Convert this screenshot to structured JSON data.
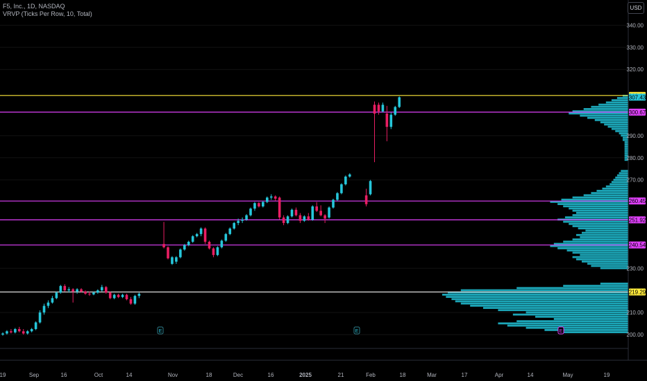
{
  "header": {
    "symbol_line": "F5, Inc., 1D, NASDAQ",
    "indicator_line": "VRVP (Ticks Per Row, 10, Total)",
    "currency": "USD"
  },
  "chart_data": {
    "type": "candlestick",
    "symbol": "FFIV",
    "interval": "1D",
    "ylim": [
      200,
      345
    ],
    "y_ticks": [
      {
        "label": "340.00",
        "value": 340
      },
      {
        "label": "330.00",
        "value": 330
      },
      {
        "label": "320.00",
        "value": 320
      },
      {
        "label": "290.00",
        "value": 290
      },
      {
        "label": "280.00",
        "value": 280
      },
      {
        "label": "270.00",
        "value": 270
      },
      {
        "label": "230.00",
        "value": 230
      },
      {
        "label": "210.00",
        "value": 210
      },
      {
        "label": "200.00",
        "value": 200
      }
    ],
    "x_ticks": [
      "19",
      "Sep",
      "16",
      "Oct",
      "14",
      "Nov",
      "18",
      "Dec",
      "16",
      "2025",
      "21",
      "Feb",
      "18",
      "Mar",
      "17",
      "Apr",
      "14",
      "May",
      "19"
    ],
    "colors": {
      "up": "#26c6da",
      "down": "#e91e63",
      "grid": "#131313",
      "level_magenta": "#e040fb",
      "level_yellow": "#ffeb3b",
      "level_white": "#e0e0e0",
      "profile": "#1fb8cc"
    },
    "horizontal_levels": [
      {
        "label": "308.21",
        "value": 308.21,
        "color": "#ffeb3b",
        "label_bg": "#ffeb3b",
        "label_fg": "#000000"
      },
      {
        "label": "307.43",
        "value": 307.43,
        "color": "#26c6da",
        "label_bg": "#26c6da",
        "label_fg": "#000000",
        "no_line": true
      },
      {
        "label": "300.67",
        "value": 300.67,
        "color": "#e040fb",
        "label_bg": "#e040fb",
        "label_fg": "#000000"
      },
      {
        "label": "260.45",
        "value": 260.45,
        "color": "#e040fb",
        "label_bg": "#e040fb",
        "label_fg": "#000000"
      },
      {
        "label": "251.92",
        "value": 251.92,
        "color": "#e040fb",
        "label_bg": "#e040fb",
        "label_fg": "#000000"
      },
      {
        "label": "240.54",
        "value": 240.54,
        "color": "#e040fb",
        "label_bg": "#e040fb",
        "label_fg": "#000000"
      },
      {
        "label": "219.29",
        "value": 219.29,
        "color": "#e0e0e0",
        "label_bg": "#ffeb3b",
        "label_fg": "#000000"
      }
    ],
    "earnings_markers": [
      {
        "label": "E",
        "near_tick": "Oct/Nov"
      },
      {
        "label": "E",
        "near_tick": "Jan"
      },
      {
        "label": "E",
        "near_tick": "May",
        "highlight": true
      }
    ],
    "candles": [
      {
        "o": 200,
        "h": 201,
        "l": 199.5,
        "c": 200.5
      },
      {
        "o": 200.5,
        "h": 202,
        "l": 200,
        "c": 201.5
      },
      {
        "o": 201.5,
        "h": 202.5,
        "l": 200.5,
        "c": 201
      },
      {
        "o": 201,
        "h": 203,
        "l": 200.5,
        "c": 202.5
      },
      {
        "o": 202.5,
        "h": 203.5,
        "l": 201,
        "c": 201.5
      },
      {
        "o": 201.5,
        "h": 202.5,
        "l": 200,
        "c": 200.5
      },
      {
        "o": 200.5,
        "h": 202,
        "l": 200,
        "c": 201.5
      },
      {
        "o": 201.5,
        "h": 203,
        "l": 201,
        "c": 202.5
      },
      {
        "o": 202.5,
        "h": 206,
        "l": 202,
        "c": 205.5
      },
      {
        "o": 205.5,
        "h": 211,
        "l": 205,
        "c": 210
      },
      {
        "o": 210,
        "h": 214,
        "l": 209,
        "c": 213
      },
      {
        "o": 213,
        "h": 215.5,
        "l": 212,
        "c": 214.5
      },
      {
        "o": 214.5,
        "h": 217.5,
        "l": 214,
        "c": 216.5
      },
      {
        "o": 216.5,
        "h": 219.5,
        "l": 216,
        "c": 219
      },
      {
        "o": 219,
        "h": 222.5,
        "l": 218.5,
        "c": 222
      },
      {
        "o": 222,
        "h": 222.8,
        "l": 219.5,
        "c": 220
      },
      {
        "o": 220,
        "h": 221.5,
        "l": 219,
        "c": 220.5
      },
      {
        "o": 220.5,
        "h": 221,
        "l": 214.5,
        "c": 219.5
      },
      {
        "o": 219.5,
        "h": 221,
        "l": 218.5,
        "c": 220.5
      },
      {
        "o": 220.5,
        "h": 221,
        "l": 219,
        "c": 219.5
      },
      {
        "o": 219.5,
        "h": 220,
        "l": 218,
        "c": 218.5
      },
      {
        "o": 218.5,
        "h": 219.5,
        "l": 217.5,
        "c": 218.2
      },
      {
        "o": 218.2,
        "h": 219.5,
        "l": 217.8,
        "c": 219
      },
      {
        "o": 219,
        "h": 220.5,
        "l": 218.5,
        "c": 220
      },
      {
        "o": 220,
        "h": 222.5,
        "l": 219.5,
        "c": 221.5
      },
      {
        "o": 221.5,
        "h": 222,
        "l": 218.5,
        "c": 219
      },
      {
        "o": 219,
        "h": 219.5,
        "l": 216,
        "c": 216.5
      },
      {
        "o": 216.5,
        "h": 218.5,
        "l": 216,
        "c": 218
      },
      {
        "o": 218,
        "h": 218.5,
        "l": 216.5,
        "c": 217
      },
      {
        "o": 217,
        "h": 218.5,
        "l": 216.5,
        "c": 218
      },
      {
        "o": 218,
        "h": 218.5,
        "l": 215.5,
        "c": 216
      },
      {
        "o": 216,
        "h": 217,
        "l": 213.5,
        "c": 214
      },
      {
        "o": 214,
        "h": 218,
        "l": 213.5,
        "c": 217.5
      },
      {
        "o": 217.5,
        "h": 219,
        "l": 216.5,
        "c": 218.5
      },
      {
        "o": 241,
        "h": 251,
        "l": 239,
        "c": 239.5
      },
      {
        "o": 239.5,
        "h": 240,
        "l": 234,
        "c": 234.5
      },
      {
        "o": 232,
        "h": 235.5,
        "l": 231.5,
        "c": 235
      },
      {
        "o": 233,
        "h": 235.5,
        "l": 232,
        "c": 235
      },
      {
        "o": 235,
        "h": 239,
        "l": 234.5,
        "c": 238.5
      },
      {
        "o": 238.5,
        "h": 241,
        "l": 238,
        "c": 240.5
      },
      {
        "o": 240.5,
        "h": 242.5,
        "l": 240,
        "c": 242
      },
      {
        "o": 242,
        "h": 245,
        "l": 241.5,
        "c": 244.5
      },
      {
        "o": 244.5,
        "h": 246,
        "l": 244,
        "c": 245.5
      },
      {
        "o": 245.5,
        "h": 248.5,
        "l": 244.5,
        "c": 248
      },
      {
        "o": 248,
        "h": 248.5,
        "l": 241,
        "c": 242
      },
      {
        "o": 242,
        "h": 242.5,
        "l": 238.5,
        "c": 239
      },
      {
        "o": 239,
        "h": 239.5,
        "l": 235,
        "c": 236
      },
      {
        "o": 236,
        "h": 240,
        "l": 235.5,
        "c": 239.5
      },
      {
        "o": 239.5,
        "h": 243,
        "l": 239,
        "c": 242.5
      },
      {
        "o": 242.5,
        "h": 246,
        "l": 242,
        "c": 245.5
      },
      {
        "o": 245.5,
        "h": 248.5,
        "l": 245,
        "c": 248
      },
      {
        "o": 248,
        "h": 251,
        "l": 247.5,
        "c": 250.5
      },
      {
        "o": 250.5,
        "h": 252.5,
        "l": 249.5,
        "c": 251.5
      },
      {
        "o": 251.5,
        "h": 253,
        "l": 250.5,
        "c": 252
      },
      {
        "o": 252,
        "h": 254.5,
        "l": 251.5,
        "c": 254
      },
      {
        "o": 254,
        "h": 257.5,
        "l": 253.5,
        "c": 257
      },
      {
        "o": 257,
        "h": 260,
        "l": 256,
        "c": 259.5
      },
      {
        "o": 259.5,
        "h": 260,
        "l": 257.5,
        "c": 258
      },
      {
        "o": 258,
        "h": 260.5,
        "l": 257.5,
        "c": 260
      },
      {
        "o": 260,
        "h": 262.5,
        "l": 259.5,
        "c": 262
      },
      {
        "o": 262,
        "h": 263.5,
        "l": 261,
        "c": 262.5
      },
      {
        "o": 262.5,
        "h": 263,
        "l": 260.5,
        "c": 261.5
      },
      {
        "o": 262,
        "h": 262.5,
        "l": 252,
        "c": 253
      },
      {
        "o": 253,
        "h": 254,
        "l": 249.5,
        "c": 250.5
      },
      {
        "o": 250.5,
        "h": 254,
        "l": 250,
        "c": 253.5
      },
      {
        "o": 253.5,
        "h": 257,
        "l": 253,
        "c": 256.5
      },
      {
        "o": 256.5,
        "h": 257.5,
        "l": 253.5,
        "c": 254
      },
      {
        "o": 254,
        "h": 255,
        "l": 250.5,
        "c": 251.5
      },
      {
        "o": 251.5,
        "h": 254,
        "l": 251,
        "c": 253.5
      },
      {
        "o": 253.5,
        "h": 255,
        "l": 251.5,
        "c": 252
      },
      {
        "o": 252,
        "h": 258.5,
        "l": 251.5,
        "c": 258
      },
      {
        "o": 258,
        "h": 260,
        "l": 255.5,
        "c": 256
      },
      {
        "o": 256,
        "h": 258.5,
        "l": 253.5,
        "c": 254
      },
      {
        "o": 254,
        "h": 254.5,
        "l": 250.5,
        "c": 252.5
      },
      {
        "o": 253,
        "h": 258,
        "l": 252.5,
        "c": 257.5
      },
      {
        "o": 257.5,
        "h": 261.5,
        "l": 257,
        "c": 261
      },
      {
        "o": 261,
        "h": 264.5,
        "l": 260.5,
        "c": 264
      },
      {
        "o": 264,
        "h": 268.5,
        "l": 263.5,
        "c": 268
      },
      {
        "o": 268,
        "h": 272,
        "l": 267.5,
        "c": 271.5
      },
      {
        "o": 271.5,
        "h": 273,
        "l": 271,
        "c": 272.5
      },
      {
        "o": 263,
        "h": 266,
        "l": 258,
        "c": 259
      },
      {
        "o": 263.5,
        "h": 270,
        "l": 263,
        "c": 269.5
      },
      {
        "o": 304,
        "h": 305.5,
        "l": 278,
        "c": 300
      },
      {
        "o": 304,
        "h": 305,
        "l": 299.5,
        "c": 301
      },
      {
        "o": 301,
        "h": 305,
        "l": 300.5,
        "c": 304
      },
      {
        "o": 300,
        "h": 303.5,
        "l": 287.5,
        "c": 294
      },
      {
        "o": 294,
        "h": 300.5,
        "l": 293,
        "c": 299.5
      },
      {
        "o": 299.5,
        "h": 303.5,
        "l": 299,
        "c": 303
      },
      {
        "o": 303,
        "h": 307.8,
        "l": 302.5,
        "c": 307.4
      }
    ],
    "volume_profile": [
      {
        "price": 201,
        "vol": 0.35
      },
      {
        "price": 202,
        "vol": 0.45
      },
      {
        "price": 203,
        "vol": 0.55
      },
      {
        "price": 204,
        "vol": 0.65
      },
      {
        "price": 205,
        "vol": 0.7
      },
      {
        "price": 206,
        "vol": 0.6
      },
      {
        "price": 207,
        "vol": 0.4
      },
      {
        "price": 208,
        "vol": 0.5
      },
      {
        "price": 209,
        "vol": 0.62
      },
      {
        "price": 210,
        "vol": 0.55
      },
      {
        "price": 211,
        "vol": 0.7
      },
      {
        "price": 212,
        "vol": 0.78
      },
      {
        "price": 213,
        "vol": 0.85
      },
      {
        "price": 214,
        "vol": 0.9
      },
      {
        "price": 215,
        "vol": 0.93
      },
      {
        "price": 216,
        "vol": 0.95
      },
      {
        "price": 217,
        "vol": 0.98
      },
      {
        "price": 218,
        "vol": 1.0
      },
      {
        "price": 219,
        "vol": 0.97
      },
      {
        "price": 220,
        "vol": 0.9
      },
      {
        "price": 221,
        "vol": 0.6
      },
      {
        "price": 222,
        "vol": 0.35
      },
      {
        "price": 223,
        "vol": 0.15
      },
      {
        "price": 230,
        "vol": 0.15
      },
      {
        "price": 231,
        "vol": 0.2
      },
      {
        "price": 232,
        "vol": 0.22
      },
      {
        "price": 233,
        "vol": 0.25
      },
      {
        "price": 234,
        "vol": 0.28
      },
      {
        "price": 235,
        "vol": 0.3
      },
      {
        "price": 236,
        "vol": 0.26
      },
      {
        "price": 237,
        "vol": 0.3
      },
      {
        "price": 238,
        "vol": 0.33
      },
      {
        "price": 239,
        "vol": 0.38
      },
      {
        "price": 240,
        "vol": 0.42
      },
      {
        "price": 241,
        "vol": 0.4
      },
      {
        "price": 242,
        "vol": 0.35
      },
      {
        "price": 243,
        "vol": 0.3
      },
      {
        "price": 244,
        "vol": 0.26
      },
      {
        "price": 245,
        "vol": 0.28
      },
      {
        "price": 246,
        "vol": 0.25
      },
      {
        "price": 247,
        "vol": 0.23
      },
      {
        "price": 248,
        "vol": 0.27
      },
      {
        "price": 249,
        "vol": 0.3
      },
      {
        "price": 250,
        "vol": 0.32
      },
      {
        "price": 251,
        "vol": 0.35
      },
      {
        "price": 252,
        "vol": 0.38
      },
      {
        "price": 253,
        "vol": 0.34
      },
      {
        "price": 254,
        "vol": 0.3
      },
      {
        "price": 255,
        "vol": 0.28
      },
      {
        "price": 256,
        "vol": 0.3
      },
      {
        "price": 257,
        "vol": 0.32
      },
      {
        "price": 258,
        "vol": 0.35
      },
      {
        "price": 259,
        "vol": 0.38
      },
      {
        "price": 260,
        "vol": 0.42
      },
      {
        "price": 261,
        "vol": 0.36
      },
      {
        "price": 262,
        "vol": 0.3
      },
      {
        "price": 263,
        "vol": 0.24
      },
      {
        "price": 264,
        "vol": 0.2
      },
      {
        "price": 265,
        "vol": 0.17
      },
      {
        "price": 266,
        "vol": 0.14
      },
      {
        "price": 267,
        "vol": 0.12
      },
      {
        "price": 268,
        "vol": 0.1
      },
      {
        "price": 269,
        "vol": 0.09
      },
      {
        "price": 270,
        "vol": 0.08
      },
      {
        "price": 271,
        "vol": 0.07
      },
      {
        "price": 272,
        "vol": 0.06
      },
      {
        "price": 273,
        "vol": 0.05
      },
      {
        "price": 274,
        "vol": 0.04
      },
      {
        "price": 279,
        "vol": 0.02
      },
      {
        "price": 280,
        "vol": 0.02
      },
      {
        "price": 281,
        "vol": 0.02
      },
      {
        "price": 282,
        "vol": 0.02
      },
      {
        "price": 283,
        "vol": 0.02
      },
      {
        "price": 284,
        "vol": 0.02
      },
      {
        "price": 285,
        "vol": 0.02
      },
      {
        "price": 286,
        "vol": 0.02
      },
      {
        "price": 287,
        "vol": 0.02
      },
      {
        "price": 288,
        "vol": 0.03
      },
      {
        "price": 289,
        "vol": 0.03
      },
      {
        "price": 290,
        "vol": 0.04
      },
      {
        "price": 291,
        "vol": 0.05
      },
      {
        "price": 292,
        "vol": 0.07
      },
      {
        "price": 293,
        "vol": 0.09
      },
      {
        "price": 294,
        "vol": 0.11
      },
      {
        "price": 295,
        "vol": 0.13
      },
      {
        "price": 296,
        "vol": 0.15
      },
      {
        "price": 297,
        "vol": 0.18
      },
      {
        "price": 298,
        "vol": 0.22
      },
      {
        "price": 299,
        "vol": 0.26
      },
      {
        "price": 300,
        "vol": 0.32
      },
      {
        "price": 301,
        "vol": 0.3
      },
      {
        "price": 302,
        "vol": 0.24
      },
      {
        "price": 303,
        "vol": 0.2
      },
      {
        "price": 304,
        "vol": 0.16
      },
      {
        "price": 305,
        "vol": 0.12
      },
      {
        "price": 306,
        "vol": 0.09
      },
      {
        "price": 307,
        "vol": 0.06
      },
      {
        "price": 308,
        "vol": 0.03
      }
    ]
  }
}
